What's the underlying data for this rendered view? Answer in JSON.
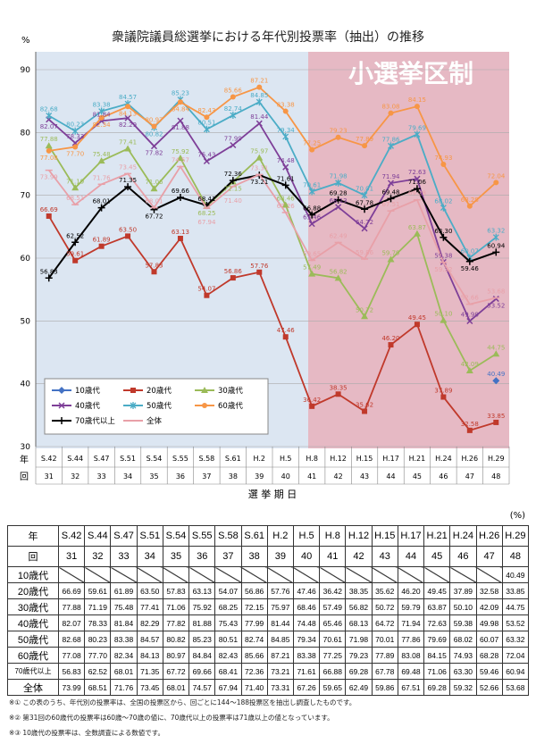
{
  "chart_data": {
    "type": "line",
    "title": "衆議院議員総選挙における年代別投票率（抽出）の推移",
    "ylabel": "%",
    "ylim": [
      30,
      90
    ],
    "yticks": [
      30,
      40,
      50,
      60,
      70,
      80,
      90
    ],
    "xlabel": "選 挙 期 日",
    "row_label_year": "年",
    "row_label_session": "回",
    "categories": [
      "S.42",
      "S.44",
      "S.47",
      "S.51",
      "S.54",
      "S.55",
      "S.58",
      "S.61",
      "H.2",
      "H.5",
      "H.8",
      "H.12",
      "H.15",
      "H.17",
      "H.21",
      "H.24",
      "H.26",
      "H.29"
    ],
    "sessions": [
      "31",
      "32",
      "33",
      "34",
      "35",
      "36",
      "37",
      "38",
      "39",
      "40",
      "41",
      "42",
      "43",
      "44",
      "45",
      "46",
      "47",
      "48"
    ],
    "annotation": "小選挙区制",
    "legend_position": "bottom-left",
    "series": [
      {
        "name": "10歳代",
        "color": "#4472c4",
        "values": [
          null,
          null,
          null,
          null,
          null,
          null,
          null,
          null,
          null,
          null,
          null,
          null,
          null,
          null,
          null,
          null,
          null,
          40.49
        ]
      },
      {
        "name": "20歳代",
        "color": "#c0392b",
        "values": [
          66.69,
          59.61,
          61.89,
          63.5,
          57.83,
          63.13,
          54.07,
          56.86,
          57.76,
          47.46,
          36.42,
          38.35,
          35.62,
          46.2,
          49.45,
          37.89,
          32.58,
          33.85
        ]
      },
      {
        "name": "30歳代",
        "color": "#9bbb59",
        "values": [
          77.88,
          71.19,
          75.48,
          77.41,
          71.06,
          75.92,
          68.25,
          72.15,
          75.97,
          68.46,
          57.49,
          56.82,
          50.72,
          59.79,
          63.87,
          50.1,
          42.09,
          44.75
        ]
      },
      {
        "name": "40歳代",
        "color": "#7e3f98",
        "values": [
          82.07,
          78.33,
          81.84,
          82.29,
          77.82,
          81.88,
          75.43,
          77.99,
          81.44,
          74.48,
          65.46,
          68.13,
          64.72,
          71.94,
          72.63,
          59.38,
          49.98,
          53.52
        ]
      },
      {
        "name": "50歳代",
        "color": "#4bacc6",
        "values": [
          82.68,
          80.23,
          83.38,
          84.57,
          80.82,
          85.23,
          80.51,
          82.74,
          84.85,
          79.34,
          70.61,
          71.98,
          70.01,
          77.86,
          79.69,
          68.02,
          60.07,
          63.32
        ]
      },
      {
        "name": "60歳代",
        "color": "#f79646",
        "values": [
          77.08,
          77.7,
          82.34,
          84.13,
          80.97,
          84.84,
          82.43,
          85.66,
          87.21,
          83.38,
          77.25,
          79.23,
          77.89,
          83.08,
          84.15,
          74.93,
          68.28,
          72.04
        ]
      },
      {
        "name": "70歳代以上",
        "color": "#000000",
        "values": [
          56.83,
          62.52,
          68.01,
          71.35,
          67.72,
          69.66,
          68.41,
          72.36,
          73.21,
          71.61,
          66.88,
          69.28,
          67.78,
          69.48,
          71.06,
          63.3,
          59.46,
          60.94
        ]
      },
      {
        "name": "全体",
        "color": "#e8a0a8",
        "values": [
          73.99,
          68.51,
          71.76,
          73.45,
          68.01,
          74.57,
          67.94,
          71.4,
          73.31,
          67.26,
          59.65,
          62.49,
          59.86,
          67.51,
          69.28,
          59.32,
          52.66,
          53.68
        ]
      }
    ]
  },
  "table": {
    "unit": "(%)",
    "year_label": "年",
    "session_label": "回"
  },
  "notes": [
    "※① この表のうち、年代別の投票率は、全国の投票区から、回ごとに144～188投票区を抽出し調査したものです。",
    "※② 第31回の60歳代の投票率は60歳～70歳の値に、70歳代以上の投票率は71歳以上の値となっています。",
    "※③ 10歳代の投票率は、全数調査による数値です。"
  ]
}
